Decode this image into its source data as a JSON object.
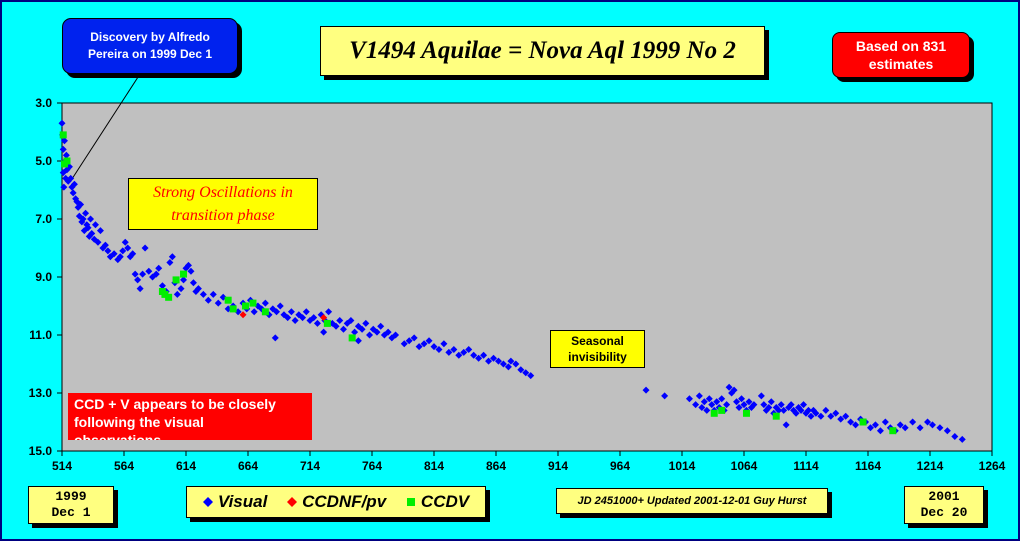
{
  "title": "V1494 Aquilae = Nova Aql 1999 No 2",
  "annotations": {
    "discovery": [
      "Discovery by Alfredo",
      "Pereira on 1999 Dec 1"
    ],
    "estimates": [
      "Based on 831",
      "estimates"
    ],
    "oscillations": [
      "Strong Oscillations in",
      "transition phase"
    ],
    "seasonal": [
      "Seasonal",
      "invisibility"
    ],
    "ccd_note": [
      "CCD + V appears to be closely",
      "following the visual",
      "observations"
    ]
  },
  "start_date": [
    "1999",
    "Dec 1"
  ],
  "end_date": [
    "2001",
    "Dec 20"
  ],
  "footer": "JD 2451000+ Updated 2001-12-01 Guy Hurst",
  "colors": {
    "background": "#00ffff",
    "plot_area": "#c0c0c0",
    "visual": "#0000ff",
    "ccdnf": "#ff0000",
    "ccdv": "#00ee00"
  },
  "chart_data": {
    "type": "scatter",
    "xlim": [
      514,
      1264
    ],
    "ylim": [
      3.0,
      15.0
    ],
    "y_reversed": true,
    "x_ticks": [
      "514",
      "564",
      "614",
      "664",
      "714",
      "764",
      "814",
      "864",
      "914",
      "964",
      "1014",
      "1064",
      "1114",
      "1164",
      "1214",
      "1264"
    ],
    "y_ticks": [
      "3.0",
      "5.0",
      "7.0",
      "9.0",
      "11.0",
      "13.0",
      "15.0"
    ],
    "legend": [
      {
        "key": "visual",
        "label": "Visual",
        "marker": "diamond"
      },
      {
        "key": "ccdnf",
        "label": "CCDNF/pv",
        "marker": "diamond"
      },
      {
        "key": "ccdv",
        "label": "CCDV",
        "marker": "square"
      }
    ],
    "series": [
      {
        "key": "visual",
        "name": "Visual",
        "points": [
          [
            514,
            3.7
          ],
          [
            514.5,
            4.1
          ],
          [
            515,
            4.6
          ],
          [
            515,
            5.4
          ],
          [
            515.5,
            5.9
          ],
          [
            516,
            4.3
          ],
          [
            516.5,
            5.0
          ],
          [
            517,
            5.6
          ],
          [
            517.5,
            4.8
          ],
          [
            518,
            5.3
          ],
          [
            519,
            5.7
          ],
          [
            520,
            5.2
          ],
          [
            521,
            5.6
          ],
          [
            522,
            5.9
          ],
          [
            523,
            6.1
          ],
          [
            524,
            5.8
          ],
          [
            525,
            6.3
          ],
          [
            526,
            6.4
          ],
          [
            527,
            6.6
          ],
          [
            528,
            6.9
          ],
          [
            529,
            6.5
          ],
          [
            530,
            7.1
          ],
          [
            531,
            7.0
          ],
          [
            532,
            7.4
          ],
          [
            533,
            6.8
          ],
          [
            534,
            7.2
          ],
          [
            535,
            7.3
          ],
          [
            536,
            7.6
          ],
          [
            537,
            7.0
          ],
          [
            538,
            7.5
          ],
          [
            540,
            7.7
          ],
          [
            541,
            7.2
          ],
          [
            543,
            7.8
          ],
          [
            545,
            7.4
          ],
          [
            547,
            8.0
          ],
          [
            549,
            7.9
          ],
          [
            551,
            8.1
          ],
          [
            553,
            8.3
          ],
          [
            556,
            8.2
          ],
          [
            559,
            8.4
          ],
          [
            561,
            8.3
          ],
          [
            563,
            8.1
          ],
          [
            565,
            7.8
          ],
          [
            567,
            8.0
          ],
          [
            569,
            8.3
          ],
          [
            571,
            8.2
          ],
          [
            573,
            8.9
          ],
          [
            575,
            9.1
          ],
          [
            577,
            9.4
          ],
          [
            579,
            8.9
          ],
          [
            581,
            8.0
          ],
          [
            584,
            8.8
          ],
          [
            587,
            9.0
          ],
          [
            590,
            8.9
          ],
          [
            592,
            8.7
          ],
          [
            595,
            9.3
          ],
          [
            598,
            9.5
          ],
          [
            601,
            8.5
          ],
          [
            603,
            8.3
          ],
          [
            605,
            9.2
          ],
          [
            607,
            9.6
          ],
          [
            610,
            9.4
          ],
          [
            612,
            9.1
          ],
          [
            614,
            8.7
          ],
          [
            616,
            8.6
          ],
          [
            618,
            8.8
          ],
          [
            620,
            9.2
          ],
          [
            622,
            9.5
          ],
          [
            624,
            9.4
          ],
          [
            628,
            9.6
          ],
          [
            632,
            9.8
          ],
          [
            636,
            9.6
          ],
          [
            640,
            9.9
          ],
          [
            644,
            9.7
          ],
          [
            648,
            10.1
          ],
          [
            652,
            10.0
          ],
          [
            656,
            10.2
          ],
          [
            660,
            9.9
          ],
          [
            663,
            10.1
          ],
          [
            666,
            9.8
          ],
          [
            669,
            10.2
          ],
          [
            672,
            10.0
          ],
          [
            675,
            10.1
          ],
          [
            678,
            9.9
          ],
          [
            681,
            10.3
          ],
          [
            684,
            10.1
          ],
          [
            687,
            10.2
          ],
          [
            690,
            10.0
          ],
          [
            693,
            10.3
          ],
          [
            696,
            10.4
          ],
          [
            699,
            10.2
          ],
          [
            702,
            10.5
          ],
          [
            705,
            10.3
          ],
          [
            708,
            10.4
          ],
          [
            711,
            10.2
          ],
          [
            714,
            10.5
          ],
          [
            717,
            10.4
          ],
          [
            720,
            10.6
          ],
          [
            723,
            10.3
          ],
          [
            726,
            10.5
          ],
          [
            729,
            10.2
          ],
          [
            732,
            10.6
          ],
          [
            735,
            10.7
          ],
          [
            738,
            10.5
          ],
          [
            741,
            10.8
          ],
          [
            744,
            10.6
          ],
          [
            747,
            10.5
          ],
          [
            750,
            10.9
          ],
          [
            753,
            10.7
          ],
          [
            756,
            10.8
          ],
          [
            759,
            10.6
          ],
          [
            762,
            11.0
          ],
          [
            765,
            10.8
          ],
          [
            768,
            10.9
          ],
          [
            771,
            10.7
          ],
          [
            774,
            11.0
          ],
          [
            777,
            10.9
          ],
          [
            780,
            11.1
          ],
          [
            783,
            11.0
          ],
          [
            686,
            11.1
          ],
          [
            725,
            10.9
          ],
          [
            753,
            11.2
          ],
          [
            790,
            11.3
          ],
          [
            794,
            11.2
          ],
          [
            798,
            11.1
          ],
          [
            802,
            11.4
          ],
          [
            806,
            11.3
          ],
          [
            810,
            11.2
          ],
          [
            814,
            11.4
          ],
          [
            818,
            11.5
          ],
          [
            822,
            11.3
          ],
          [
            826,
            11.6
          ],
          [
            830,
            11.5
          ],
          [
            834,
            11.7
          ],
          [
            838,
            11.6
          ],
          [
            842,
            11.5
          ],
          [
            846,
            11.7
          ],
          [
            850,
            11.8
          ],
          [
            854,
            11.7
          ],
          [
            858,
            11.9
          ],
          [
            862,
            11.8
          ],
          [
            866,
            11.9
          ],
          [
            870,
            12.0
          ],
          [
            874,
            12.1
          ],
          [
            876,
            11.9
          ],
          [
            880,
            12.0
          ],
          [
            884,
            12.2
          ],
          [
            888,
            12.3
          ],
          [
            892,
            12.4
          ],
          [
            985,
            12.9
          ],
          [
            1000,
            13.1
          ],
          [
            1020,
            13.2
          ],
          [
            1025,
            13.4
          ],
          [
            1028,
            13.1
          ],
          [
            1030,
            13.5
          ],
          [
            1032,
            13.3
          ],
          [
            1034,
            13.6
          ],
          [
            1036,
            13.2
          ],
          [
            1038,
            13.4
          ],
          [
            1040,
            13.6
          ],
          [
            1042,
            13.3
          ],
          [
            1044,
            13.5
          ],
          [
            1046,
            13.2
          ],
          [
            1048,
            13.6
          ],
          [
            1050,
            13.4
          ],
          [
            1052,
            12.8
          ],
          [
            1054,
            13.0
          ],
          [
            1056,
            12.9
          ],
          [
            1058,
            13.3
          ],
          [
            1060,
            13.5
          ],
          [
            1062,
            13.2
          ],
          [
            1064,
            13.4
          ],
          [
            1066,
            13.6
          ],
          [
            1068,
            13.3
          ],
          [
            1070,
            13.5
          ],
          [
            1072,
            13.4
          ],
          [
            1078,
            13.1
          ],
          [
            1080,
            13.4
          ],
          [
            1082,
            13.6
          ],
          [
            1084,
            13.5
          ],
          [
            1086,
            13.3
          ],
          [
            1088,
            13.7
          ],
          [
            1090,
            13.5
          ],
          [
            1092,
            13.6
          ],
          [
            1094,
            13.4
          ],
          [
            1096,
            13.6
          ],
          [
            1098,
            14.1
          ],
          [
            1100,
            13.5
          ],
          [
            1102,
            13.4
          ],
          [
            1104,
            13.6
          ],
          [
            1106,
            13.7
          ],
          [
            1108,
            13.5
          ],
          [
            1110,
            13.6
          ],
          [
            1112,
            13.4
          ],
          [
            1114,
            13.7
          ],
          [
            1116,
            13.6
          ],
          [
            1118,
            13.8
          ],
          [
            1120,
            13.6
          ],
          [
            1122,
            13.7
          ],
          [
            1126,
            13.8
          ],
          [
            1130,
            13.6
          ],
          [
            1134,
            13.8
          ],
          [
            1138,
            13.7
          ],
          [
            1142,
            13.9
          ],
          [
            1146,
            13.8
          ],
          [
            1150,
            14.0
          ],
          [
            1154,
            14.1
          ],
          [
            1158,
            13.9
          ],
          [
            1162,
            14.0
          ],
          [
            1166,
            14.2
          ],
          [
            1170,
            14.1
          ],
          [
            1174,
            14.3
          ],
          [
            1178,
            14.0
          ],
          [
            1182,
            14.2
          ],
          [
            1186,
            14.3
          ],
          [
            1190,
            14.1
          ],
          [
            1194,
            14.2
          ],
          [
            1200,
            14.0
          ],
          [
            1206,
            14.2
          ],
          [
            1212,
            14.0
          ],
          [
            1216,
            14.1
          ],
          [
            1222,
            14.2
          ],
          [
            1228,
            14.3
          ],
          [
            1234,
            14.5
          ],
          [
            1240,
            14.6
          ]
        ]
      },
      {
        "key": "ccdnf",
        "name": "CCDNF/pv",
        "points": [
          [
            660,
            10.3
          ],
          [
            725,
            10.4
          ]
        ]
      },
      {
        "key": "ccdv",
        "name": "CCDV",
        "points": [
          [
            515,
            4.1
          ],
          [
            516,
            5.1
          ],
          [
            518,
            5.0
          ],
          [
            595,
            9.5
          ],
          [
            597,
            9.6
          ],
          [
            600,
            9.7
          ],
          [
            606,
            9.1
          ],
          [
            612,
            8.9
          ],
          [
            648,
            9.8
          ],
          [
            652,
            10.1
          ],
          [
            662,
            10.0
          ],
          [
            668,
            9.9
          ],
          [
            678,
            10.2
          ],
          [
            728,
            10.6
          ],
          [
            748,
            11.1
          ],
          [
            1040,
            13.7
          ],
          [
            1046,
            13.6
          ],
          [
            1066,
            13.7
          ],
          [
            1090,
            13.8
          ],
          [
            1160,
            14.0
          ],
          [
            1184,
            14.3
          ]
        ]
      }
    ]
  }
}
